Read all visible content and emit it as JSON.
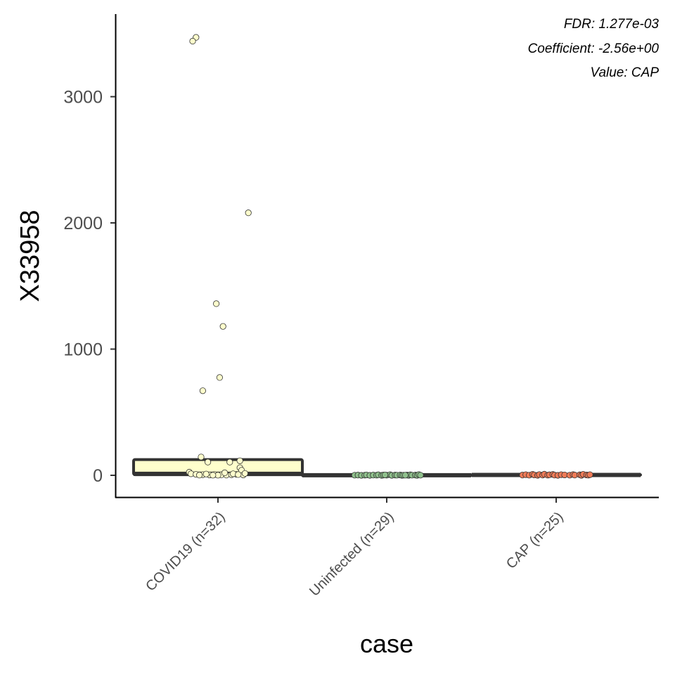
{
  "chart_data": {
    "type": "box",
    "xlabel": "case",
    "ylabel": "X33958",
    "ylim": [
      -170,
      3650
    ],
    "yticks": [
      0,
      1000,
      2000,
      3000
    ],
    "grid": false,
    "legend": "none",
    "annotations": [
      "FDR: 1.277e-03",
      "Coefficient: -2.56e+00",
      "Value: CAP"
    ],
    "categories": [
      "COVID19 (n=32)",
      "Uninfected (n=29)",
      "CAP (n=25)"
    ],
    "groups": [
      {
        "name": "COVID19 (n=32)",
        "color": "#ffffcc",
        "box": {
          "q1": 5,
          "median": 12,
          "q3": 125,
          "whisker_low": 0,
          "whisker_high": 130
        },
        "points": [
          {
            "x": -0.13,
            "y": 3470
          },
          {
            "x": -0.15,
            "y": 3440
          },
          {
            "x": 0.18,
            "y": 2080
          },
          {
            "x": -0.01,
            "y": 1360
          },
          {
            "x": 0.03,
            "y": 1180
          },
          {
            "x": 0.01,
            "y": 775
          },
          {
            "x": -0.09,
            "y": 670
          },
          {
            "x": -0.1,
            "y": 145
          },
          {
            "x": -0.06,
            "y": 105
          },
          {
            "x": 0.07,
            "y": 105
          },
          {
            "x": 0.13,
            "y": 115
          },
          {
            "x": 0.13,
            "y": 60
          },
          {
            "x": 0.14,
            "y": 40
          },
          {
            "x": -0.17,
            "y": 25
          },
          {
            "x": -0.16,
            "y": 12
          },
          {
            "x": -0.13,
            "y": 8
          },
          {
            "x": -0.09,
            "y": 5
          },
          {
            "x": -0.05,
            "y": 3
          },
          {
            "x": -0.02,
            "y": 6
          },
          {
            "x": 0.02,
            "y": 4
          },
          {
            "x": 0.05,
            "y": 2
          },
          {
            "x": 0.08,
            "y": 5
          },
          {
            "x": 0.11,
            "y": 8
          },
          {
            "x": 0.15,
            "y": 3
          },
          {
            "x": 0.16,
            "y": 15
          },
          {
            "x": -0.11,
            "y": 2
          },
          {
            "x": 0.0,
            "y": 1
          },
          {
            "x": -0.07,
            "y": 10
          },
          {
            "x": 0.09,
            "y": 12
          },
          {
            "x": 0.12,
            "y": 6
          },
          {
            "x": -0.03,
            "y": 1
          },
          {
            "x": 0.04,
            "y": 20
          }
        ]
      },
      {
        "name": "Uninfected (n=29)",
        "color": "#8fc08c",
        "box": {
          "q1": 0,
          "median": 1,
          "q3": 3,
          "whisker_low": 0,
          "whisker_high": 6
        },
        "points": [
          {
            "x": -0.19,
            "y": 1
          },
          {
            "x": -0.17,
            "y": 2
          },
          {
            "x": -0.15,
            "y": 0
          },
          {
            "x": -0.13,
            "y": 1
          },
          {
            "x": -0.12,
            "y": 3
          },
          {
            "x": -0.1,
            "y": 0
          },
          {
            "x": -0.08,
            "y": 2
          },
          {
            "x": -0.06,
            "y": 1
          },
          {
            "x": -0.05,
            "y": 4
          },
          {
            "x": -0.03,
            "y": 0
          },
          {
            "x": -0.02,
            "y": 2
          },
          {
            "x": 0.0,
            "y": 1
          },
          {
            "x": 0.02,
            "y": 5
          },
          {
            "x": 0.03,
            "y": 0
          },
          {
            "x": 0.05,
            "y": 2
          },
          {
            "x": 0.06,
            "y": 1
          },
          {
            "x": 0.08,
            "y": 3
          },
          {
            "x": 0.09,
            "y": 0
          },
          {
            "x": 0.1,
            "y": 1
          },
          {
            "x": 0.12,
            "y": 2
          },
          {
            "x": 0.13,
            "y": 0
          },
          {
            "x": 0.14,
            "y": 4
          },
          {
            "x": 0.15,
            "y": 1
          },
          {
            "x": 0.17,
            "y": 2
          },
          {
            "x": 0.18,
            "y": 0
          },
          {
            "x": 0.19,
            "y": 6
          },
          {
            "x": 0.2,
            "y": 1
          },
          {
            "x": -0.01,
            "y": 3
          },
          {
            "x": 0.11,
            "y": 1
          }
        ]
      },
      {
        "name": "CAP (n=25)",
        "color": "#ef7b57",
        "box": {
          "q1": 1,
          "median": 3,
          "q3": 6,
          "whisker_low": 0,
          "whisker_high": 10
        },
        "points": [
          {
            "x": -0.2,
            "y": 2
          },
          {
            "x": -0.18,
            "y": 5
          },
          {
            "x": -0.16,
            "y": 1
          },
          {
            "x": -0.14,
            "y": 8
          },
          {
            "x": -0.13,
            "y": 3
          },
          {
            "x": -0.11,
            "y": 0
          },
          {
            "x": -0.1,
            "y": 6
          },
          {
            "x": -0.08,
            "y": 2
          },
          {
            "x": -0.07,
            "y": 9
          },
          {
            "x": -0.05,
            "y": 1
          },
          {
            "x": -0.04,
            "y": 4
          },
          {
            "x": -0.02,
            "y": 7
          },
          {
            "x": -0.01,
            "y": 2
          },
          {
            "x": 0.01,
            "y": 0
          },
          {
            "x": 0.03,
            "y": 5
          },
          {
            "x": 0.05,
            "y": 3
          },
          {
            "x": 0.08,
            "y": 1
          },
          {
            "x": 0.1,
            "y": 6
          },
          {
            "x": 0.11,
            "y": 2
          },
          {
            "x": 0.14,
            "y": 4
          },
          {
            "x": 0.15,
            "y": 0
          },
          {
            "x": 0.16,
            "y": 8
          },
          {
            "x": 0.18,
            "y": 3
          },
          {
            "x": 0.19,
            "y": 1
          },
          {
            "x": 0.2,
            "y": 5
          }
        ]
      }
    ]
  }
}
